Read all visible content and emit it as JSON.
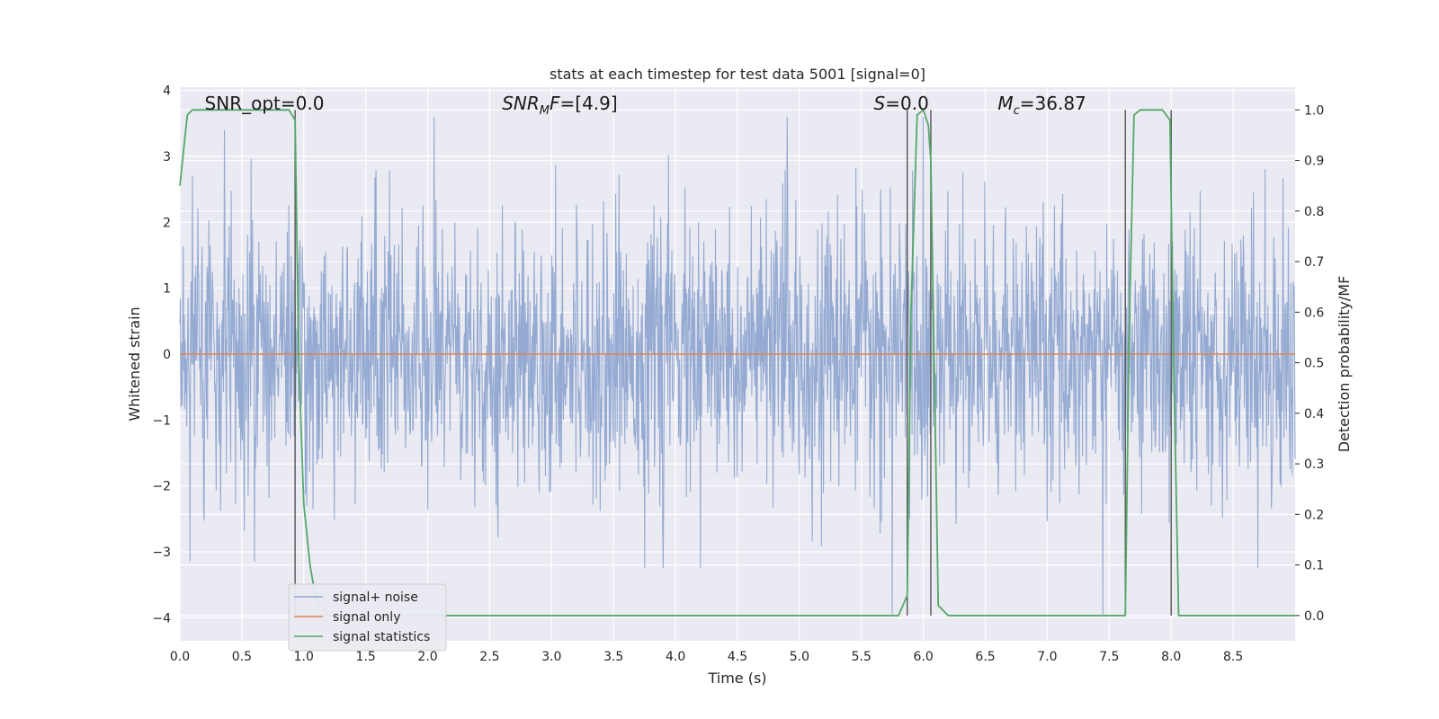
{
  "chart_data": {
    "type": "line",
    "title": "stats at each timestep for test data 5001 [signal=0]",
    "xlabel": "Time (s)",
    "ylabel_left": "Whitened strain",
    "ylabel_right": "Detection probability/MF",
    "xlim": [
      0.0,
      9.0
    ],
    "ylim_left": [
      -4.35,
      4.05
    ],
    "ylim_right": [
      -0.05,
      1.045
    ],
    "x_ticks": [
      "0.0",
      "0.5",
      "1.0",
      "1.5",
      "2.0",
      "2.5",
      "3.0",
      "3.5",
      "4.0",
      "4.5",
      "5.0",
      "5.5",
      "6.0",
      "6.5",
      "7.0",
      "7.5",
      "8.0",
      "8.5"
    ],
    "y_ticks_left": [
      "4",
      "3",
      "2",
      "1",
      "0",
      "−1",
      "−2",
      "−3",
      "−4"
    ],
    "y_ticks_right": [
      "1.0",
      "0.9",
      "0.8",
      "0.7",
      "0.6",
      "0.5",
      "0.4",
      "0.3",
      "0.2",
      "0.1",
      "0.0"
    ],
    "grid": true,
    "legend_position": "lower-left",
    "annotations": [
      {
        "prefix": "SNR_opt",
        "sub": "",
        "suffix": "=0.0",
        "italic": false,
        "x": 0.2
      },
      {
        "prefix": "SNR",
        "sub": "M",
        "suffix": "F=[4.9]",
        "italic": true,
        "x": 2.6
      },
      {
        "prefix": "S",
        "sub": "",
        "suffix": "=0.0",
        "italic": true,
        "x": 5.6
      },
      {
        "prefix": "M",
        "sub": "c",
        "suffix": "=36.87",
        "italic": true,
        "x": 6.6
      }
    ],
    "vertical_lines_x": [
      0.93,
      5.87,
      6.06,
      7.63,
      8.0
    ],
    "series": [
      {
        "name": "signal+ noise",
        "color": "#8fa6d0",
        "axis": "left",
        "description_style": "dense noise",
        "sample_rate_hz": 256,
        "peak_values": [
          {
            "x": 0.1,
            "y": 2.7
          },
          {
            "x": 0.6,
            "y": -3.15
          },
          {
            "x": 2.05,
            "y": -3.0
          },
          {
            "x": 2.05,
            "y": 3.6
          },
          {
            "x": 3.75,
            "y": -3.25
          },
          {
            "x": 3.9,
            "y": -3.25
          },
          {
            "x": 4.2,
            "y": -3.25
          },
          {
            "x": 4.9,
            "y": 3.6
          },
          {
            "x": 5.75,
            "y": -3.95
          },
          {
            "x": 6.0,
            "y": 3.6
          },
          {
            "x": 7.45,
            "y": -3.95
          },
          {
            "x": 8.7,
            "y": -3.25
          }
        ]
      },
      {
        "name": "signal only",
        "color": "#dd8452",
        "axis": "left",
        "x": [
          0.0,
          9.0
        ],
        "y": [
          0.0,
          0.0
        ]
      },
      {
        "name": "signal statistics",
        "color": "#55a868",
        "axis": "right",
        "x": [
          0.0,
          0.06,
          0.1,
          0.2,
          0.5,
          0.88,
          0.93,
          0.96,
          1.0,
          1.05,
          1.1,
          1.2,
          2.0,
          3.0,
          4.0,
          5.0,
          5.8,
          5.87,
          5.9,
          5.95,
          6.0,
          6.04,
          6.06,
          6.12,
          6.2,
          6.5,
          7.0,
          7.5,
          7.63,
          7.66,
          7.7,
          7.75,
          7.85,
          7.93,
          7.99,
          8.02,
          8.06,
          8.12,
          8.5,
          9.0
        ],
        "y": [
          0.85,
          0.99,
          1.0,
          1.0,
          1.0,
          1.0,
          0.98,
          0.5,
          0.22,
          0.1,
          0.03,
          0.0,
          0.0,
          0.0,
          0.0,
          0.0,
          0.0,
          0.04,
          0.6,
          0.99,
          1.0,
          0.97,
          0.9,
          0.02,
          0.0,
          0.0,
          0.0,
          0.0,
          0.0,
          0.55,
          0.99,
          1.0,
          1.0,
          1.0,
          0.98,
          0.5,
          0.0,
          0.0,
          0.0,
          0.0
        ]
      }
    ]
  },
  "legend": {
    "items": [
      {
        "label": "signal+ noise",
        "color": "#8fa6d0"
      },
      {
        "label": "signal only",
        "color": "#dd8452"
      },
      {
        "label": "signal statistics",
        "color": "#55a868"
      }
    ]
  },
  "colors": {
    "axes_background": "#eaeaf2",
    "grid": "#ffffff",
    "vline": "#555555"
  }
}
